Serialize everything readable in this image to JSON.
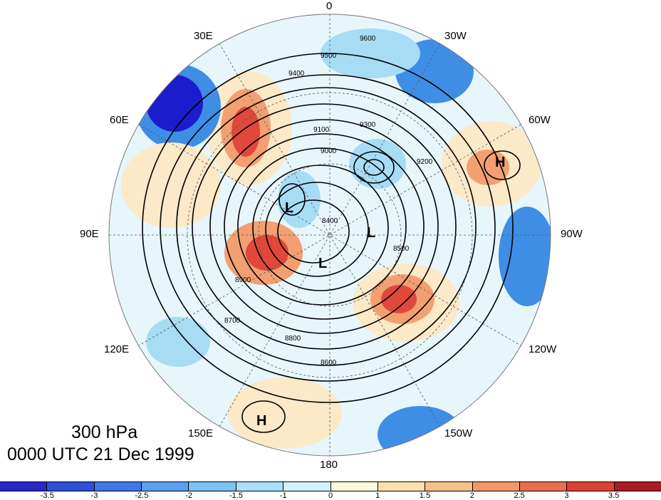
{
  "map": {
    "level": "300 hPa",
    "valid_time": "0000 UTC 21 Dec 1999",
    "longitude_labels": {
      "n": "0",
      "s": "180",
      "nw": "30E",
      "ne": "30W",
      "wnw": "60E",
      "ene": "60W",
      "w": "90E",
      "e": "90W",
      "wsw": "120E",
      "ese": "120W",
      "sw": "150E",
      "se": "150W"
    },
    "centers": [
      "L",
      "L",
      "L",
      "H",
      "H"
    ],
    "contour_labels": [
      "9600",
      "9500",
      "9400",
      "9300",
      "9200",
      "9100",
      "9000",
      "8900",
      "8800",
      "8700",
      "8600",
      "8500",
      "8400"
    ],
    "colors": {
      "strong_neg": "#1c1ccf",
      "neg": "#3f8ee6",
      "weak_neg": "#a8dcf5",
      "near_zero": "#e6f6fb",
      "weak_pos": "#fbe9c8",
      "pos": "#f2a072",
      "strong_pos": "#e0483a"
    }
  },
  "colorbar": {
    "ticks": [
      "-3.5",
      "-3",
      "-2.5",
      "-2",
      "-1.5",
      "-1",
      "0",
      "1",
      "1.5",
      "2",
      "2.5",
      "3",
      "3.5"
    ],
    "colors": [
      "#2828c8",
      "#2e4fd8",
      "#3f78e6",
      "#5aa0ee",
      "#7cc2f5",
      "#a9e0fa",
      "#d2f1fb",
      "#fefbdc",
      "#fbe2aa",
      "#f7c088",
      "#f09868",
      "#e76f4f",
      "#db4234",
      "#a91c24"
    ]
  }
}
